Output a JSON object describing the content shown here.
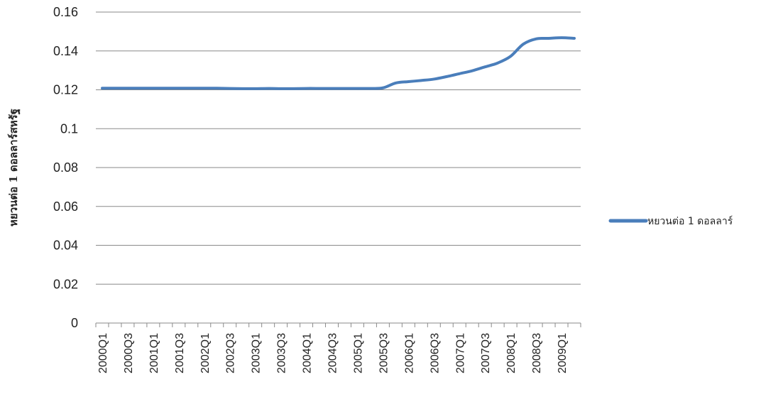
{
  "chart_data": {
    "type": "line",
    "ylabel": "หยวนต่อ 1 ดอลลาร์สหรัฐ",
    "ylim": [
      0,
      0.16
    ],
    "yticks": [
      "0",
      "0.02",
      "0.04",
      "0.06",
      "0.08",
      "0.1",
      "0.12",
      "0.14",
      "0.16"
    ],
    "x": [
      "2000Q1",
      "2000Q2",
      "2000Q3",
      "2000Q4",
      "2001Q1",
      "2001Q2",
      "2001Q3",
      "2001Q4",
      "2002Q1",
      "2002Q2",
      "2002Q3",
      "2002Q4",
      "2003Q1",
      "2003Q2",
      "2003Q3",
      "2003Q4",
      "2004Q1",
      "2004Q2",
      "2004Q3",
      "2004Q4",
      "2005Q1",
      "2005Q2",
      "2005Q3",
      "2005Q4",
      "2006Q1",
      "2006Q2",
      "2006Q3",
      "2006Q4",
      "2007Q1",
      "2007Q2",
      "2007Q3",
      "2007Q4",
      "2008Q1",
      "2008Q2",
      "2008Q3",
      "2008Q4",
      "2009Q1",
      "2009Q2"
    ],
    "x_tick_labels": [
      "2000Q1",
      "2000Q3",
      "2001Q1",
      "2001Q3",
      "2002Q1",
      "2002Q3",
      "2003Q1",
      "2003Q3",
      "2004Q1",
      "2004Q3",
      "2005Q1",
      "2005Q3",
      "2006Q1",
      "2006Q3",
      "2007Q1",
      "2007Q3",
      "2008Q1",
      "2008Q3",
      "2009Q1"
    ],
    "series": [
      {
        "name": "หยวนต่อ 1 ดอลลาร์",
        "color": "#4a7ebb",
        "values": [
          0.1208,
          0.1208,
          0.1208,
          0.1208,
          0.1208,
          0.1208,
          0.1208,
          0.1208,
          0.1208,
          0.1208,
          0.1207,
          0.1206,
          0.1206,
          0.1207,
          0.1206,
          0.1206,
          0.1207,
          0.1207,
          0.1207,
          0.1207,
          0.1207,
          0.1207,
          0.121,
          0.1235,
          0.1242,
          0.1248,
          0.1255,
          0.1268,
          0.1283,
          0.1298,
          0.1318,
          0.1338,
          0.1372,
          0.1435,
          0.1462,
          0.1465,
          0.1468,
          0.1465
        ]
      }
    ],
    "grid": true,
    "legend_position": "right"
  }
}
